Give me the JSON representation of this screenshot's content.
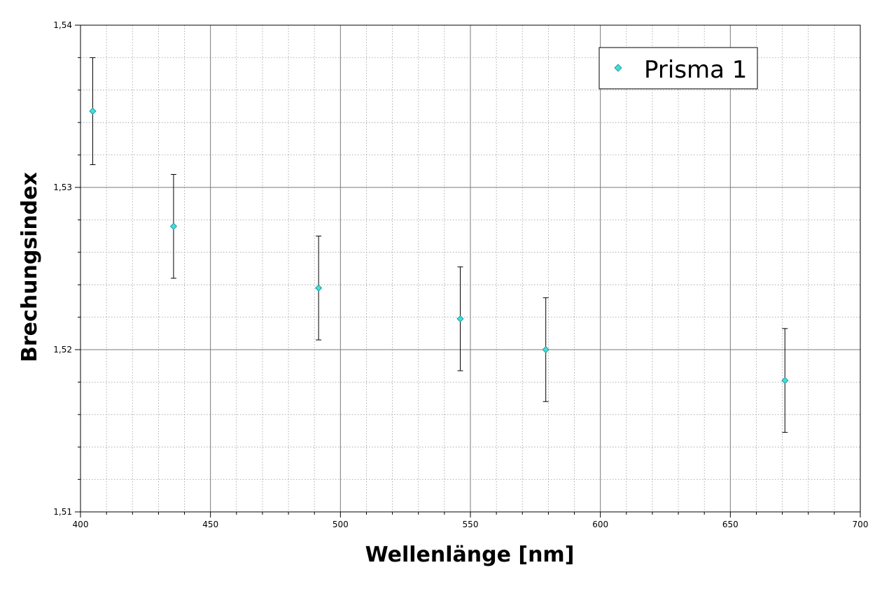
{
  "chart_data": {
    "type": "scatter",
    "xlabel": "Wellenlänge [nm]",
    "ylabel": "Brechungsindex",
    "xlim": [
      400,
      700
    ],
    "ylim": [
      1.51,
      1.54
    ],
    "x_ticks": [
      400,
      450,
      500,
      550,
      600,
      650,
      700
    ],
    "x_tick_labels": [
      "400",
      "450",
      "500",
      "550",
      "600",
      "650",
      "700"
    ],
    "y_ticks": [
      1.51,
      1.52,
      1.53,
      1.54
    ],
    "y_tick_labels": [
      "1,51",
      "1,52",
      "1,53",
      "1,54"
    ],
    "x_minor_step": 10,
    "y_minor_step": 0.002,
    "grid": true,
    "legend_position": "top-right",
    "series": [
      {
        "name": "Prisma 1",
        "color": "#3fdede",
        "marker": "diamond",
        "x": [
          404.7,
          435.8,
          491.6,
          546.1,
          579.0,
          671.0
        ],
        "y": [
          1.5347,
          1.5276,
          1.5238,
          1.5219,
          1.52,
          1.5181
        ],
        "yerr": [
          0.0033,
          0.0032,
          0.0032,
          0.0032,
          0.0032,
          0.0032
        ]
      }
    ]
  }
}
